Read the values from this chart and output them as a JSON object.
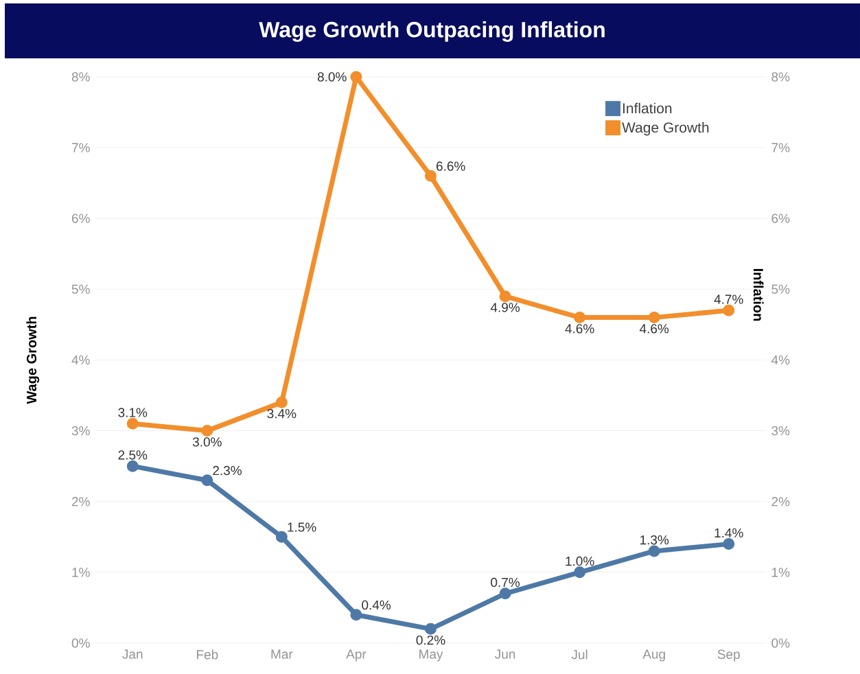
{
  "chart_data": {
    "type": "line",
    "title": "Wage Growth Outpacing Inflation",
    "categories": [
      "Jan",
      "Feb",
      "Mar",
      "Apr",
      "May",
      "Jun",
      "Jul",
      "Aug",
      "Sep"
    ],
    "series": [
      {
        "name": "Inflation",
        "color": "#4e79a7",
        "axis": "y2",
        "values": [
          2.5,
          2.3,
          1.5,
          0.4,
          0.2,
          0.7,
          1.0,
          1.3,
          1.4
        ],
        "value_labels": [
          "2.5%",
          "2.3%",
          "1.5%",
          "0.4%",
          "0.2%",
          "0.7%",
          "1.0%",
          "1.3%",
          "1.4%"
        ]
      },
      {
        "name": "Wage Growth",
        "color": "#f28e2b",
        "values": [
          3.1,
          3.0,
          3.4,
          8.0,
          6.6,
          4.9,
          4.6,
          4.6,
          4.7
        ],
        "value_labels": [
          "3.1%",
          "3.0%",
          "3.4%",
          "8.0%",
          "6.6%",
          "4.9%",
          "4.6%",
          "4.6%",
          "4.7%"
        ]
      }
    ],
    "ylabel": "Wage Growth",
    "y2label": "Inflation",
    "ylim": [
      0,
      8
    ],
    "yticks": [
      {
        "value": 0,
        "label": "0%"
      },
      {
        "value": 1,
        "label": "1%"
      },
      {
        "value": 2,
        "label": "2%"
      },
      {
        "value": 3,
        "label": "3%"
      },
      {
        "value": 4,
        "label": "4%"
      },
      {
        "value": 5,
        "label": "5%"
      },
      {
        "value": 6,
        "label": "6%"
      },
      {
        "value": 7,
        "label": "7%"
      },
      {
        "value": 8,
        "label": "8%"
      }
    ],
    "y2lim": [
      0,
      8
    ],
    "y2ticks": [
      {
        "value": 0,
        "label": "0%"
      },
      {
        "value": 1,
        "label": "1%"
      },
      {
        "value": 2,
        "label": "2%"
      },
      {
        "value": 3,
        "label": "3%"
      },
      {
        "value": 4,
        "label": "4%"
      },
      {
        "value": 5,
        "label": "5%"
      },
      {
        "value": 6,
        "label": "6%"
      },
      {
        "value": 7,
        "label": "7%"
      },
      {
        "value": 8,
        "label": "8%"
      }
    ],
    "grid": "y",
    "legend": "top right",
    "marker": "circle",
    "line_style": "solid"
  }
}
